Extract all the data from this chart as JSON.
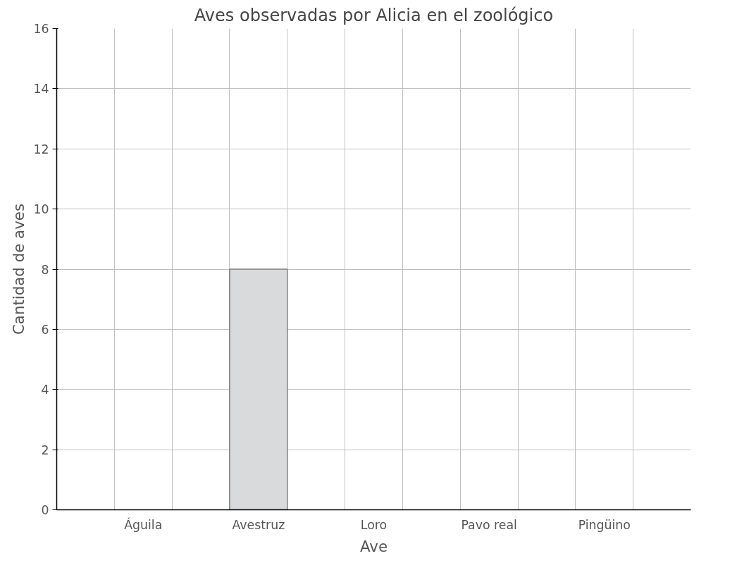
{
  "chart_data": {
    "type": "bar",
    "title": "Aves observadas por Alicia en el zoológico",
    "xlabel": "Ave",
    "ylabel": "Cantidad de aves",
    "categories": [
      "Águila",
      "Avestruz",
      "Loro",
      "Pavo real",
      "Pingüino"
    ],
    "values": [
      null,
      8,
      null,
      null,
      null
    ],
    "color": "#d9dadb",
    "ylim": [
      0,
      16
    ],
    "yticks": [
      0,
      2,
      4,
      6,
      8,
      10,
      12,
      14,
      16
    ],
    "grid": true
  }
}
